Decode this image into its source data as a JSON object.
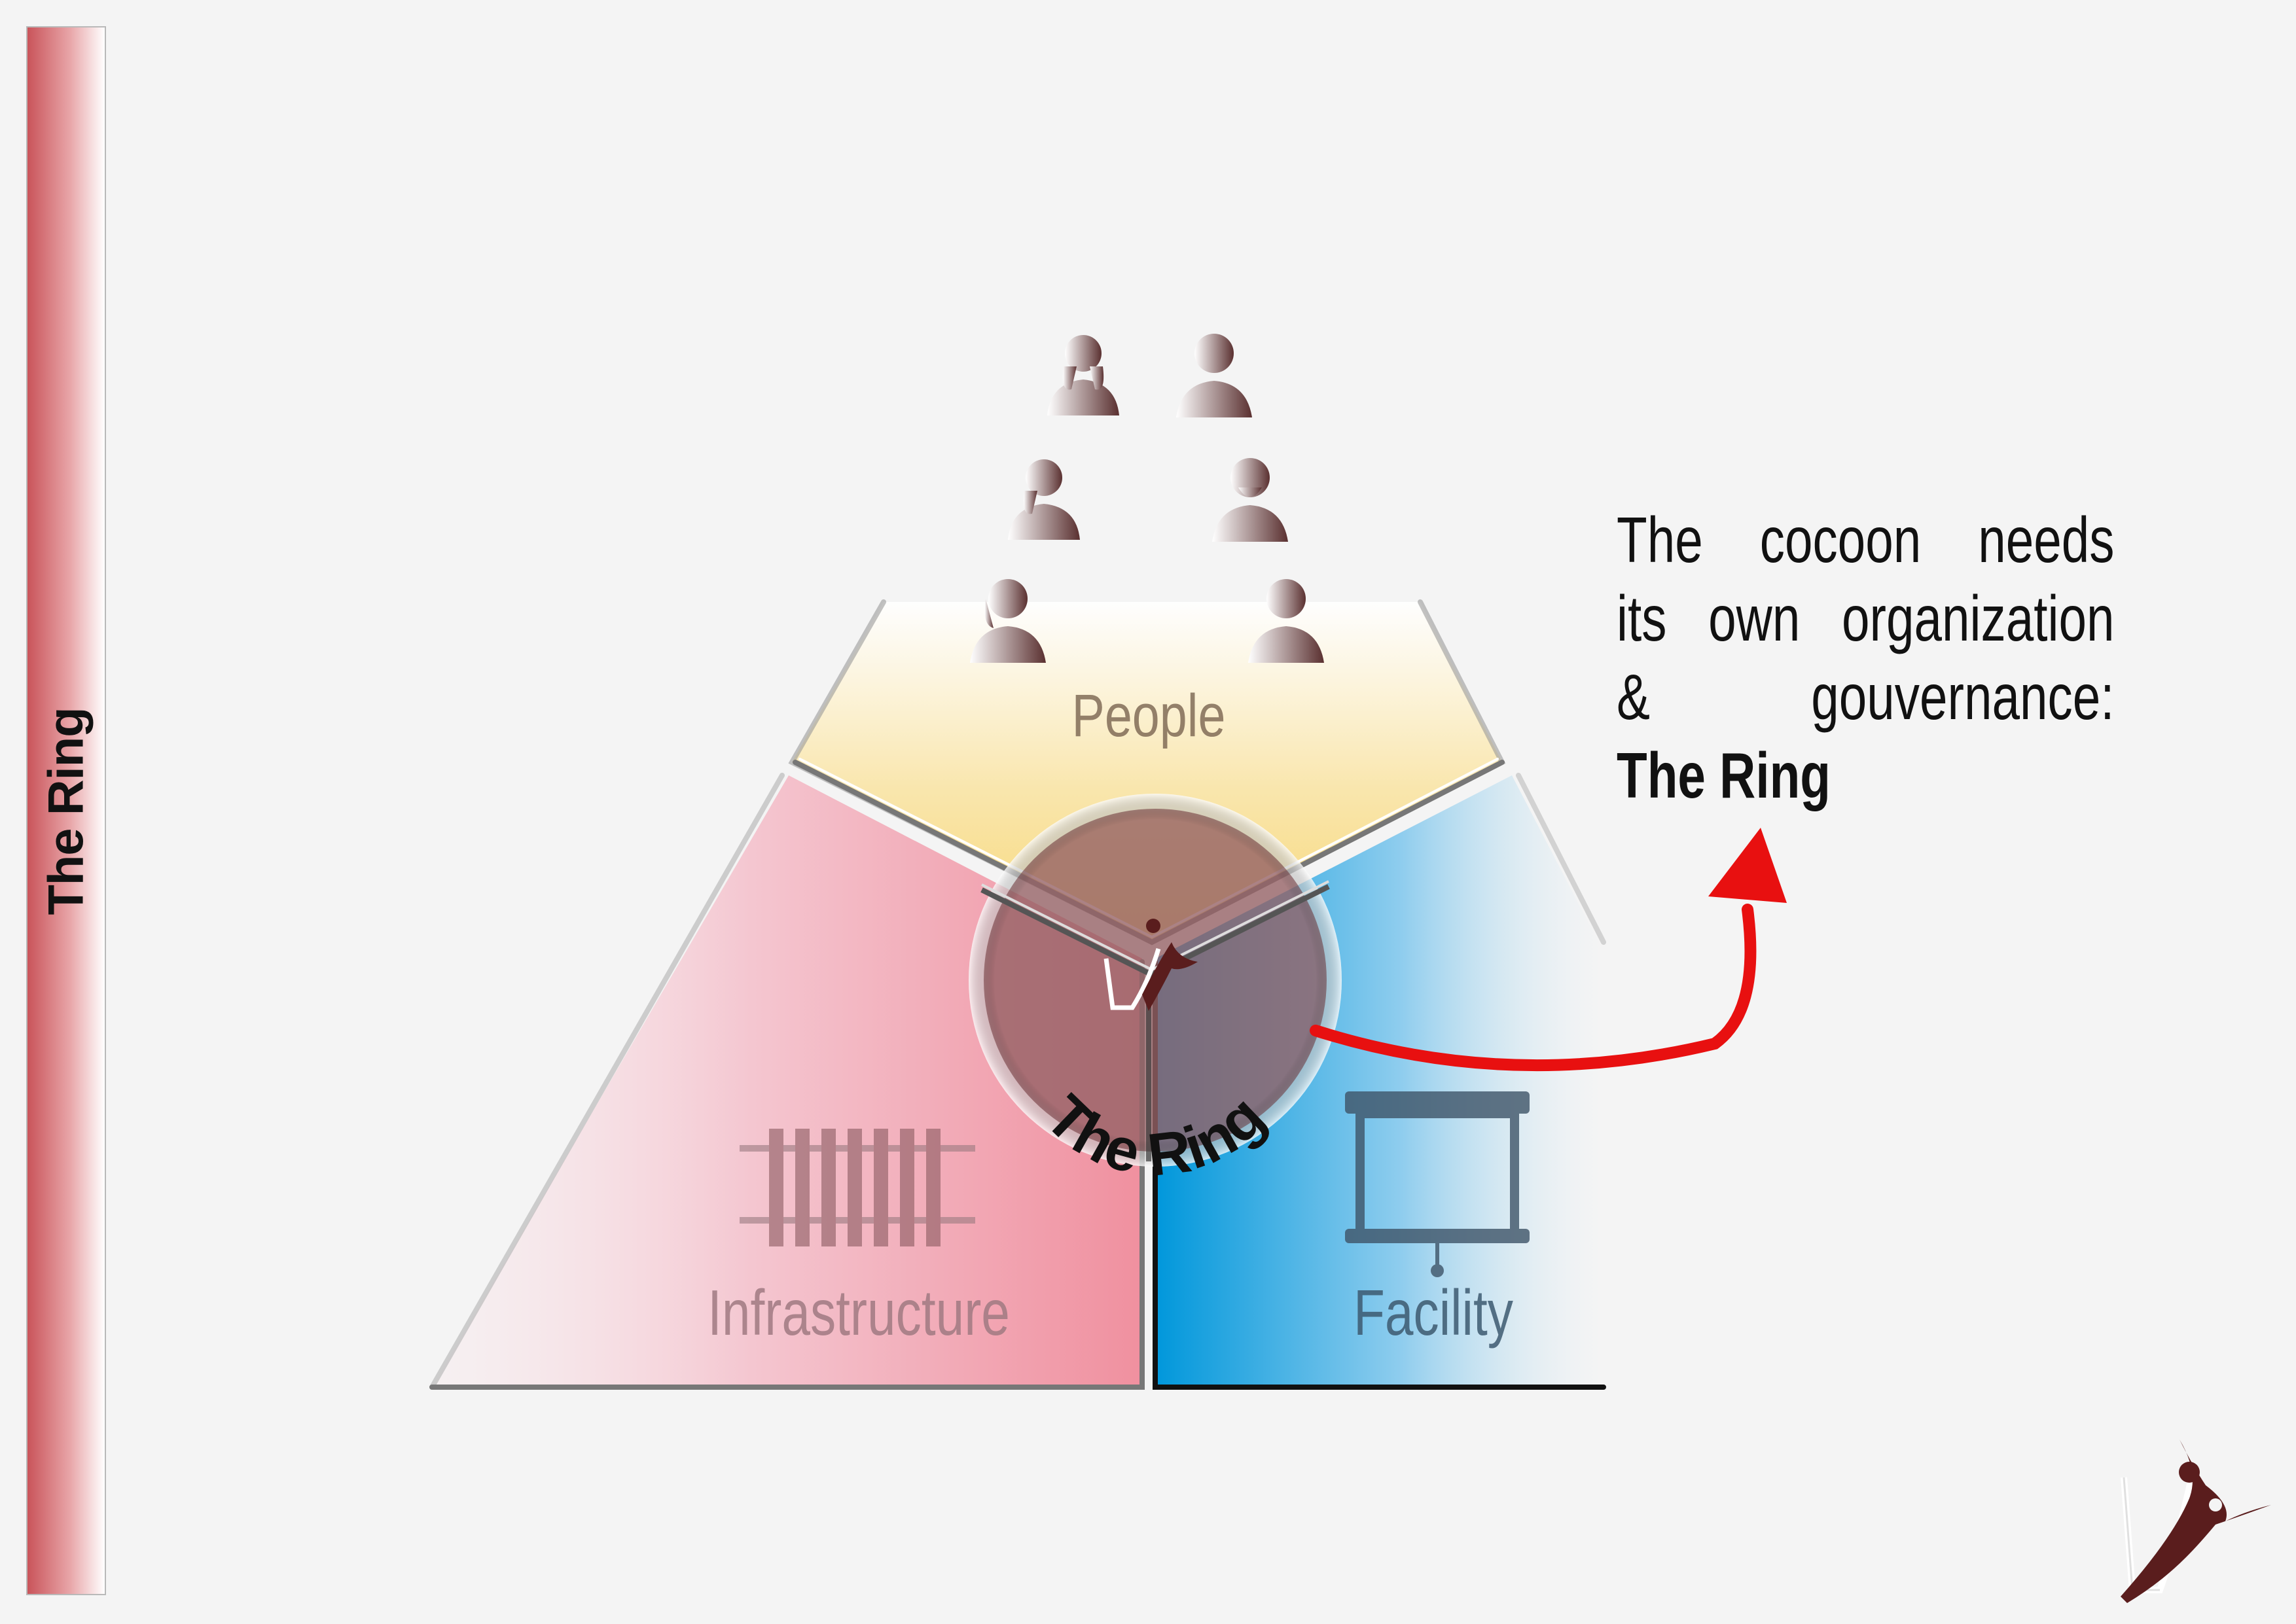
{
  "sidebar": {
    "title": "The Ring"
  },
  "diagram": {
    "segments": {
      "people": "People",
      "infrastructure": "Infrastructure",
      "facility": "Facility"
    },
    "ring_label": "The Ring",
    "colors": {
      "people": "#f8d879",
      "infrastructure": "#f0909f",
      "facility": "#0097db",
      "ring": "#7a3a3a",
      "arrow": "#e81010",
      "icon": "#6b4a4a"
    }
  },
  "callout": {
    "line1": "The cocoon needs",
    "line2": "its own organization",
    "line3": "& gouvernance:",
    "line4": "The Ring"
  }
}
